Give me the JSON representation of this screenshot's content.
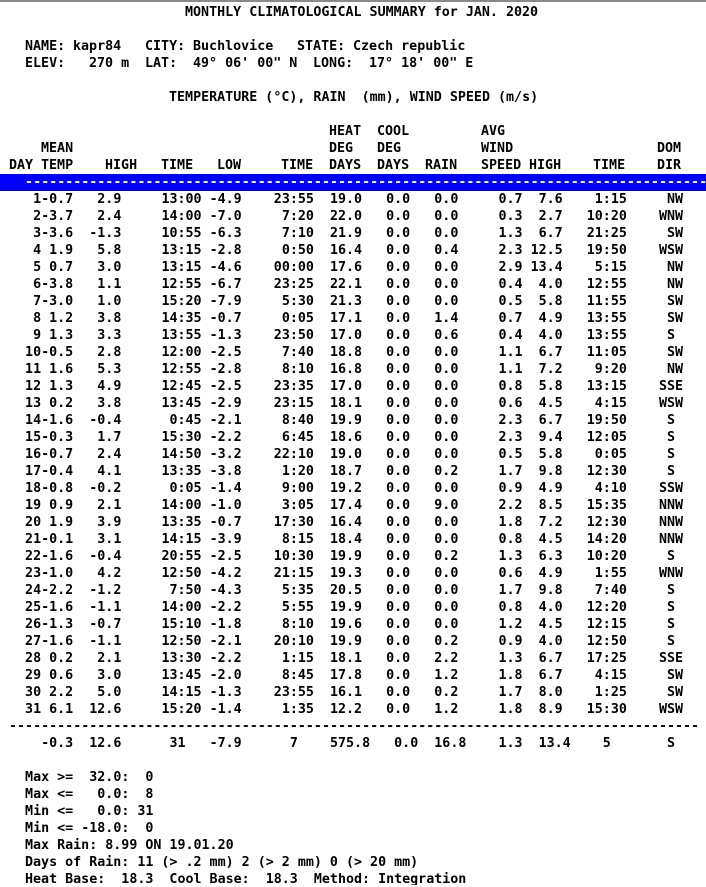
{
  "title": "MONTHLY CLIMATOLOGICAL SUMMARY for JAN. 2020",
  "station": {
    "name_label": "NAME:",
    "name": "kapr84",
    "city_label": "CITY:",
    "city": "Buchlovice",
    "state_label": "STATE:",
    "state": "Czech republic",
    "elev_label": "ELEV:",
    "elev": "270 m",
    "lat_label": "LAT:",
    "lat": "49° 06' 00\" N",
    "long_label": "LONG:",
    "long": "17° 18' 00\" E"
  },
  "units_line": "TEMPERATURE (°C), RAIN  (mm), WIND SPEED (m/s)",
  "table": {
    "header_line1": [
      {
        "text": "HEAT",
        "col": 40
      },
      {
        "text": "COOL",
        "col": 46
      },
      {
        "text": "AVG",
        "col": 59
      }
    ],
    "header_line2": [
      {
        "text": "MEAN",
        "col": 4
      },
      {
        "text": "DEG",
        "col": 40
      },
      {
        "text": "DEG",
        "col": 46
      },
      {
        "text": "WIND",
        "col": 59
      },
      {
        "text": "DOM",
        "col": 81
      }
    ],
    "header_line3": [
      {
        "text": "DAY",
        "col": 0
      },
      {
        "text": "TEMP",
        "col": 4
      },
      {
        "text": "HIGH",
        "col": 12
      },
      {
        "text": "TIME",
        "col": 19
      },
      {
        "text": "LOW",
        "col": 26
      },
      {
        "text": "TIME",
        "col": 34
      },
      {
        "text": "DAYS",
        "col": 40
      },
      {
        "text": "DAYS",
        "col": 46
      },
      {
        "text": "RAIN",
        "col": 52
      },
      {
        "text": "SPEED",
        "col": 59
      },
      {
        "text": "HIGH",
        "col": 65
      },
      {
        "text": "TIME",
        "col": 73
      },
      {
        "text": "DIR",
        "col": 81
      }
    ],
    "rows": [
      [
        "1",
        "-0.7",
        "2.9",
        "13:00",
        "-4.9",
        "23:55",
        "19.0",
        "0.0",
        "0.0",
        "0.7",
        "7.6",
        "1:15",
        "NW"
      ],
      [
        "2",
        "-3.7",
        "2.4",
        "14:00",
        "-7.0",
        "7:20",
        "22.0",
        "0.0",
        "0.0",
        "0.3",
        "2.7",
        "10:20",
        "WNW"
      ],
      [
        "3",
        "-3.6",
        "-1.3",
        "10:55",
        "-6.3",
        "7:10",
        "21.9",
        "0.0",
        "0.0",
        "1.3",
        "6.7",
        "21:25",
        "SW"
      ],
      [
        "4",
        "1.9",
        "5.8",
        "13:15",
        "-2.8",
        "0:50",
        "16.4",
        "0.0",
        "0.4",
        "2.3",
        "12.5",
        "19:50",
        "WSW"
      ],
      [
        "5",
        "0.7",
        "3.0",
        "13:15",
        "-4.6",
        "00:00",
        "17.6",
        "0.0",
        "0.0",
        "2.9",
        "13.4",
        "5:15",
        "NW"
      ],
      [
        "6",
        "-3.8",
        "1.1",
        "12:55",
        "-6.7",
        "23:25",
        "22.1",
        "0.0",
        "0.0",
        "0.4",
        "4.0",
        "12:55",
        "NW"
      ],
      [
        "7",
        "-3.0",
        "1.0",
        "15:20",
        "-7.9",
        "5:30",
        "21.3",
        "0.0",
        "0.0",
        "0.5",
        "5.8",
        "11:55",
        "SW"
      ],
      [
        "8",
        "1.2",
        "3.8",
        "14:35",
        "-0.7",
        "0:05",
        "17.1",
        "0.0",
        "1.4",
        "0.7",
        "4.9",
        "13:55",
        "SW"
      ],
      [
        "9",
        "1.3",
        "3.3",
        "13:55",
        "-1.3",
        "23:50",
        "17.0",
        "0.0",
        "0.6",
        "0.4",
        "4.0",
        "13:55",
        "S"
      ],
      [
        "10",
        "-0.5",
        "2.8",
        "12:00",
        "-2.5",
        "7:40",
        "18.8",
        "0.0",
        "0.0",
        "1.1",
        "6.7",
        "11:05",
        "SW"
      ],
      [
        "11",
        "1.6",
        "5.3",
        "12:55",
        "-2.8",
        "8:10",
        "16.8",
        "0.0",
        "0.0",
        "1.1",
        "7.2",
        "9:20",
        "NW"
      ],
      [
        "12",
        "1.3",
        "4.9",
        "12:45",
        "-2.5",
        "23:35",
        "17.0",
        "0.0",
        "0.0",
        "0.8",
        "5.8",
        "13:15",
        "SSE"
      ],
      [
        "13",
        "0.2",
        "3.8",
        "13:45",
        "-2.9",
        "23:15",
        "18.1",
        "0.0",
        "0.0",
        "0.6",
        "4.5",
        "4:15",
        "WSW"
      ],
      [
        "14",
        "-1.6",
        "-0.4",
        "0:45",
        "-2.1",
        "8:40",
        "19.9",
        "0.0",
        "0.0",
        "2.3",
        "6.7",
        "19:50",
        "S"
      ],
      [
        "15",
        "-0.3",
        "1.7",
        "15:30",
        "-2.2",
        "6:45",
        "18.6",
        "0.0",
        "0.0",
        "2.3",
        "9.4",
        "12:05",
        "S"
      ],
      [
        "16",
        "-0.7",
        "2.4",
        "14:50",
        "-3.2",
        "22:10",
        "19.0",
        "0.0",
        "0.0",
        "0.5",
        "5.8",
        "0:05",
        "S"
      ],
      [
        "17",
        "-0.4",
        "4.1",
        "13:35",
        "-3.8",
        "1:20",
        "18.7",
        "0.0",
        "0.2",
        "1.7",
        "9.8",
        "12:30",
        "S"
      ],
      [
        "18",
        "-0.8",
        "-0.2",
        "0:05",
        "-1.4",
        "9:00",
        "19.2",
        "0.0",
        "0.0",
        "0.9",
        "4.9",
        "4:10",
        "SSW"
      ],
      [
        "19",
        "0.9",
        "2.1",
        "14:00",
        "-1.0",
        "3:05",
        "17.4",
        "0.0",
        "9.0",
        "2.2",
        "8.5",
        "15:35",
        "NNW"
      ],
      [
        "20",
        "1.9",
        "3.9",
        "13:35",
        "-0.7",
        "17:30",
        "16.4",
        "0.0",
        "0.0",
        "1.8",
        "7.2",
        "12:30",
        "NNW"
      ],
      [
        "21",
        "-0.1",
        "3.1",
        "14:15",
        "-3.9",
        "8:15",
        "18.4",
        "0.0",
        "0.0",
        "0.8",
        "4.5",
        "14:20",
        "NNW"
      ],
      [
        "22",
        "-1.6",
        "-0.4",
        "20:55",
        "-2.5",
        "10:30",
        "19.9",
        "0.0",
        "0.2",
        "1.3",
        "6.3",
        "10:20",
        "S"
      ],
      [
        "23",
        "-1.0",
        "4.2",
        "12:50",
        "-4.2",
        "21:15",
        "19.3",
        "0.0",
        "0.0",
        "0.6",
        "4.9",
        "1:55",
        "WNW"
      ],
      [
        "24",
        "-2.2",
        "-1.2",
        "7:50",
        "-4.3",
        "5:35",
        "20.5",
        "0.0",
        "0.0",
        "1.7",
        "9.8",
        "7:40",
        "S"
      ],
      [
        "25",
        "-1.6",
        "-1.1",
        "14:00",
        "-2.2",
        "5:55",
        "19.9",
        "0.0",
        "0.0",
        "0.8",
        "4.0",
        "12:20",
        "S"
      ],
      [
        "26",
        "-1.3",
        "-0.7",
        "15:10",
        "-1.8",
        "8:10",
        "19.6",
        "0.0",
        "0.0",
        "1.2",
        "4.5",
        "12:15",
        "S"
      ],
      [
        "27",
        "-1.6",
        "-1.1",
        "12:50",
        "-2.1",
        "20:10",
        "19.9",
        "0.0",
        "0.2",
        "0.9",
        "4.0",
        "12:50",
        "S"
      ],
      [
        "28",
        "0.2",
        "2.1",
        "13:30",
        "-2.2",
        "1:15",
        "18.1",
        "0.0",
        "2.2",
        "1.3",
        "6.7",
        "17:25",
        "SSE"
      ],
      [
        "29",
        "0.6",
        "3.0",
        "13:45",
        "-2.0",
        "8:45",
        "17.8",
        "0.0",
        "1.2",
        "1.8",
        "6.7",
        "4:15",
        "SW"
      ],
      [
        "30",
        "2.2",
        "5.0",
        "14:15",
        "-1.3",
        "23:55",
        "16.1",
        "0.0",
        "0.2",
        "1.7",
        "8.0",
        "1:25",
        "SW"
      ],
      [
        "31",
        "6.1",
        "12.6",
        "15:20",
        "-1.4",
        "1:35",
        "12.2",
        "0.0",
        "1.2",
        "1.8",
        "8.9",
        "15:30",
        "WSW"
      ]
    ],
    "summary": [
      "-0.3",
      "12.6",
      "31",
      "-7.9",
      "7",
      "575.8",
      "0.0",
      "16.8",
      "1.3",
      "13.4",
      "5",
      "S"
    ]
  },
  "footer": {
    "thresholds": [
      {
        "label": "Max >=",
        "value": "32.0",
        "count": "0"
      },
      {
        "label": "Max <=",
        "value": "0.0",
        "count": "8"
      },
      {
        "label": "Min <=",
        "value": "0.0",
        "count": "31"
      },
      {
        "label": "Min <=",
        "value": "-18.0",
        "count": "0"
      }
    ],
    "max_rain": {
      "label": "Max Rain:",
      "value": "8.99",
      "on_word": "ON",
      "date": "19.01.20"
    },
    "days_of_rain": {
      "label": "Days of Rain:",
      "items": [
        [
          "11",
          "(> .2 mm)"
        ],
        [
          "2",
          "(> 2 mm)"
        ],
        [
          "0",
          "(> 20 mm)"
        ]
      ]
    },
    "bases": {
      "heat_label": "Heat Base:",
      "heat": "18.3",
      "cool_label": "Cool Base:",
      "cool": "18.3",
      "method_label": "Method:",
      "method": "Integration"
    }
  },
  "colors": {
    "selection_blue": "#0000ff",
    "selection_text": "#ffffff",
    "border_gray": "#8a8a8a"
  }
}
